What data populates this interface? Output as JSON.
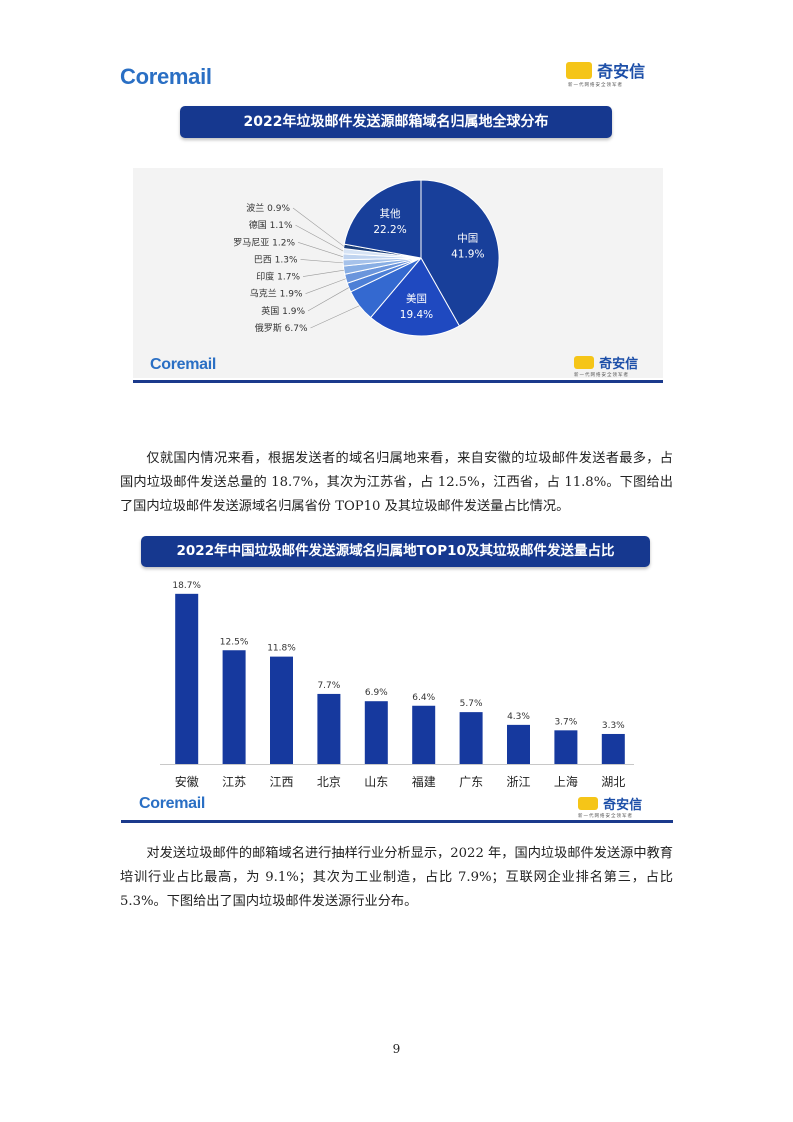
{
  "header": {
    "coremail_logo": "Coremail",
    "qax_logo": "奇安信",
    "qax_slogan": "新一代网络安全领军者"
  },
  "chart1": {
    "banner": "2022年垃圾邮件发送源邮箱域名归属地全球分布",
    "colors": [
      "#183f9a",
      "#1f49c0",
      "#3469d0",
      "#4d7fd6",
      "#6a95dc",
      "#88aee4",
      "#a6c2ea",
      "#c0d4f0",
      "#d6e3f5",
      "#193d7a"
    ]
  },
  "chart2": {
    "banner": "2022年中国垃圾邮件发送源域名归属地TOP10及其垃圾邮件发送量占比",
    "bar_color": "#16399e"
  },
  "chart_data": [
    {
      "type": "pie",
      "title": "2022年垃圾邮件发送源邮箱域名归属地全球分布",
      "labels": [
        "中国",
        "美国",
        "俄罗斯",
        "英国",
        "乌克兰",
        "印度",
        "巴西",
        "罗马尼亚",
        "德国",
        "波兰",
        "其他"
      ],
      "values": [
        41.9,
        19.4,
        6.7,
        1.9,
        1.9,
        1.7,
        1.3,
        1.2,
        1.1,
        0.9,
        22.2
      ],
      "value_labels": [
        "41.9%",
        "19.4%",
        "6.7%",
        "1.9%",
        "1.9%",
        "1.7%",
        "1.3%",
        "1.2%",
        "1.1%",
        "0.9%",
        "22.2%"
      ]
    },
    {
      "type": "bar",
      "title": "2022年中国垃圾邮件发送源域名归属地TOP10及其垃圾邮件发送量占比",
      "categories": [
        "安徽",
        "江苏",
        "江西",
        "北京",
        "山东",
        "福建",
        "广东",
        "浙江",
        "上海",
        "湖北"
      ],
      "values": [
        18.7,
        12.5,
        11.8,
        7.7,
        6.9,
        6.4,
        5.7,
        4.3,
        3.7,
        3.3
      ],
      "value_labels": [
        "18.7%",
        "12.5%",
        "11.8%",
        "7.7%",
        "6.9%",
        "6.4%",
        "5.7%",
        "4.3%",
        "3.7%",
        "3.3%"
      ],
      "ylim": [
        0,
        20
      ],
      "grid": false
    }
  ],
  "paragraphs": [
    "仅就国内情况来看，根据发送者的域名归属地来看，来自安徽的垃圾邮件发送者最多，占国内垃圾邮件发送总量的 18.7%，其次为江苏省，占 12.5%，江西省，占 11.8%。下图给出了国内垃圾邮件发送源域名归属省份 TOP10 及其垃圾邮件发送量占比情况。",
    "对发送垃圾邮件的邮箱域名进行抽样行业分析显示，2022 年，国内垃圾邮件发送源中教育培训行业占比最高，为 9.1%；其次为工业制造，占比 7.9%；互联网企业排名第三，占比 5.3%。下图给出了国内垃圾邮件发送源行业分布。"
  ],
  "page_number": "9"
}
